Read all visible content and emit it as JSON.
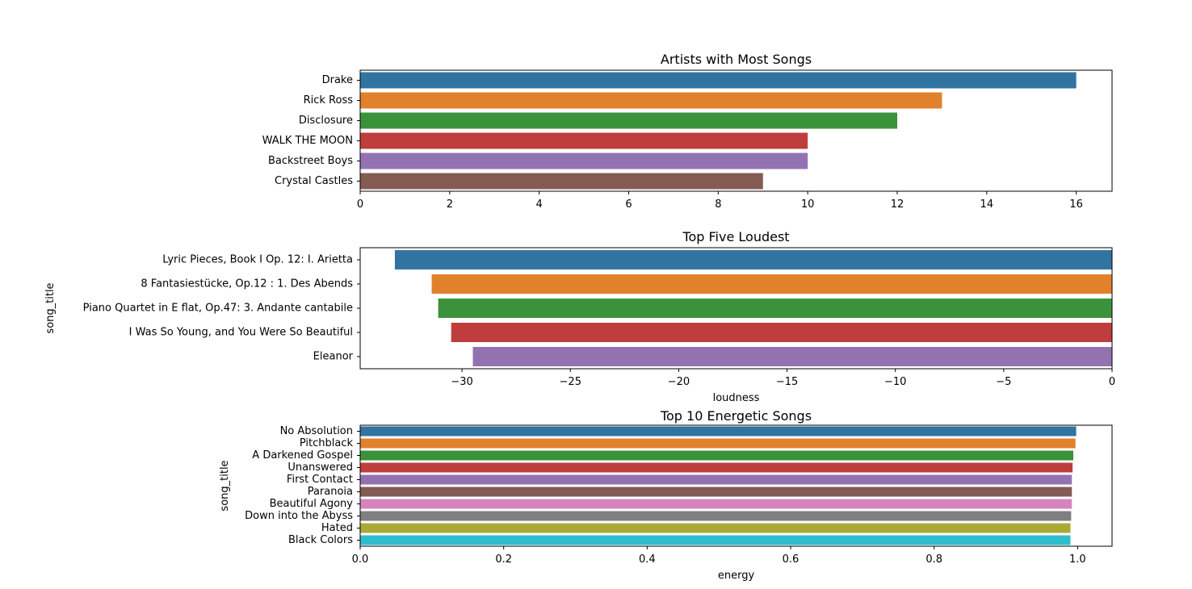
{
  "chart_data": [
    {
      "type": "bar",
      "orientation": "horizontal",
      "title": "Artists with Most Songs",
      "xlabel": "",
      "ylabel": "",
      "categories": [
        "Drake",
        "Rick Ross",
        "Disclosure",
        "WALK THE MOON",
        "Backstreet Boys",
        "Crystal Castles"
      ],
      "values": [
        16,
        13,
        12,
        10,
        10,
        9
      ],
      "xlim": [
        0,
        16.8
      ],
      "xticks": [
        0,
        2,
        4,
        6,
        8,
        10,
        12,
        14,
        16
      ],
      "xtick_labels": [
        "0",
        "2",
        "4",
        "6",
        "8",
        "10",
        "12",
        "14",
        "16"
      ],
      "colors": [
        "#3274a1",
        "#e1812c",
        "#3a923a",
        "#c03d3e",
        "#9372b2",
        "#845b53"
      ],
      "grid": false
    },
    {
      "type": "bar",
      "orientation": "horizontal",
      "title": "Top Five Loudest",
      "xlabel": "loudness",
      "ylabel": "song_title",
      "categories": [
        "Lyric Pieces, Book I Op. 12: I. Arietta",
        "8 Fantasiestücke, Op.12 : 1. Des Abends",
        "Piano Quartet in E flat, Op.47: 3. Andante cantabile",
        "I Was So Young, and You Were So Beautiful",
        "Eleanor"
      ],
      "values": [
        -33.1,
        -31.4,
        -31.1,
        -30.5,
        -29.5
      ],
      "xlim": [
        -34.7,
        0
      ],
      "xticks": [
        -30,
        -25,
        -20,
        -15,
        -10,
        -5,
        0
      ],
      "xtick_labels": [
        "−30",
        "−25",
        "−20",
        "−15",
        "−10",
        "−5",
        "0"
      ],
      "colors": [
        "#3274a1",
        "#e1812c",
        "#3a923a",
        "#c03d3e",
        "#9372b2"
      ],
      "grid": false
    },
    {
      "type": "bar",
      "orientation": "horizontal",
      "title": "Top 10 Energetic Songs",
      "xlabel": "energy",
      "ylabel": "song_title",
      "categories": [
        "No Absolution",
        "Pitchblack",
        "A Darkened Gospel",
        "Unanswered",
        "First Contact",
        "Paranoia",
        "Beautiful Agony",
        "Down into the Abyss",
        "Hated",
        "Black Colors"
      ],
      "values": [
        0.998,
        0.997,
        0.994,
        0.993,
        0.992,
        0.992,
        0.992,
        0.991,
        0.99,
        0.99
      ],
      "xlim": [
        0,
        1.048
      ],
      "xticks": [
        0,
        0.2,
        0.4,
        0.6,
        0.8,
        1.0
      ],
      "xtick_labels": [
        "0.0",
        "0.2",
        "0.4",
        "0.6",
        "0.8",
        "1.0"
      ],
      "colors": [
        "#3274a1",
        "#e1812c",
        "#3a923a",
        "#c03d3e",
        "#9372b2",
        "#845b53",
        "#d684bd",
        "#7f7f7f",
        "#a9aa35",
        "#2ebdcc"
      ],
      "grid": false
    }
  ]
}
